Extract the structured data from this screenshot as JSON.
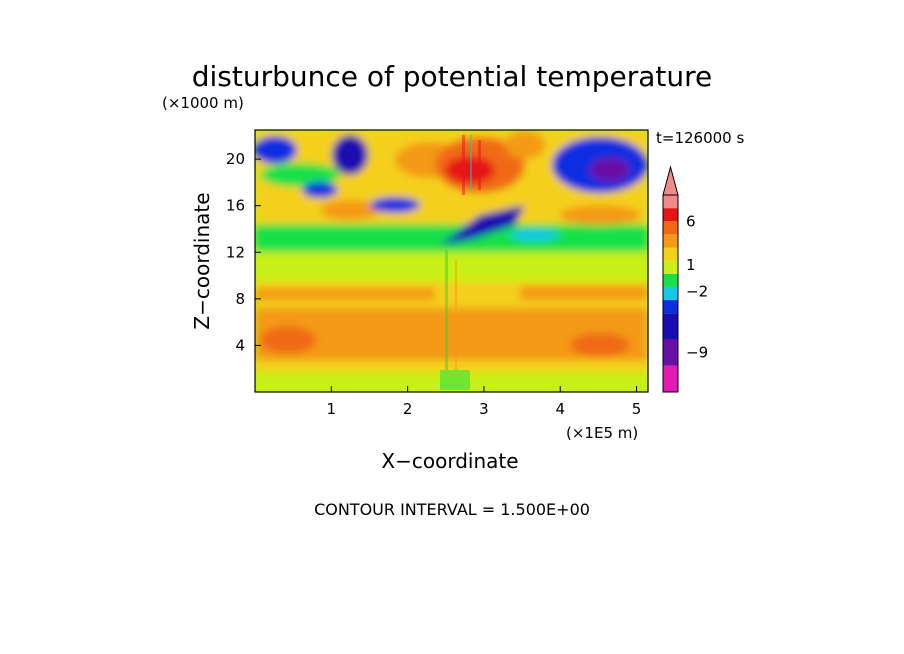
{
  "chart_data": {
    "type": "heatmap",
    "title": "disturbunce of potential temperature",
    "time_label": "t=126000 s",
    "xlabel": "X−coordinate",
    "ylabel": "Z−coordinate",
    "x_unit": "(×1E5 m)",
    "y_unit": "(×1000 m)",
    "xlim": [
      0,
      5.15
    ],
    "ylim": [
      0,
      22.5
    ],
    "x_ticks": [
      "1",
      "2",
      "3",
      "4",
      "5"
    ],
    "y_ticks": [
      "4",
      "8",
      "12",
      "16",
      "20"
    ],
    "grid": false,
    "colorbar": {
      "labels": [
        "6",
        "1",
        "−2",
        "−9"
      ],
      "colors": [
        "#e21ab4",
        "#6a0fa6",
        "#1a0db0",
        "#0b2ee0",
        "#14c8e6",
        "#18e04a",
        "#c8f018",
        "#f4d01a",
        "#f49a16",
        "#f06a14",
        "#e61616",
        "#f08a8a"
      ],
      "levels": [
        -13.5,
        -10.5,
        -7.5,
        -4.5,
        -3,
        -1.5,
        0,
        1.5,
        3,
        4.5,
        6,
        7.5,
        9
      ]
    },
    "footer": "CONTOUR INTERVAL = 1.500E+00",
    "regions": [
      {
        "name": "near-surface",
        "z": [
          0,
          2
        ],
        "level": 0,
        "description": "yellow with green streaks"
      },
      {
        "name": "lower-warm",
        "z": [
          2,
          7
        ],
        "level": 3,
        "description": "orange"
      },
      {
        "name": "mid-warm",
        "z": [
          7,
          10
        ],
        "level": 2,
        "description": "orange-yellow"
      },
      {
        "name": "yellow-band",
        "z": [
          10,
          13
        ],
        "level": 1,
        "description": "yellow"
      },
      {
        "name": "green-band",
        "z": [
          13,
          15
        ],
        "level": -1,
        "description": "green"
      },
      {
        "name": "upper-mixed",
        "z": [
          15,
          22.5
        ],
        "level": 1,
        "description": "alternating orange, green, blue cells"
      },
      {
        "name": "cold-core-upper",
        "x": [
          2.3,
          3.6
        ],
        "z": [
          12,
          17
        ],
        "level": -9,
        "description": "blue/purple"
      },
      {
        "name": "cold-core-right",
        "x": [
          3.8,
          5.0
        ],
        "z": [
          17,
          22.5
        ],
        "level": -10,
        "description": "blue/purple"
      },
      {
        "name": "warm-core",
        "x": [
          2.4,
          3.4
        ],
        "z": [
          17,
          22.5
        ],
        "level": 7,
        "description": "red"
      }
    ]
  }
}
